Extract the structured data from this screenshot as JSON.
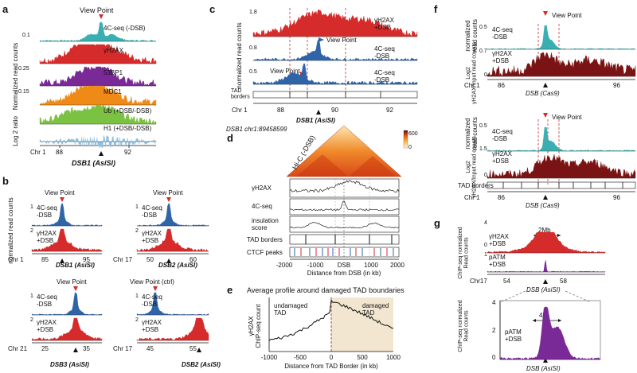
{
  "panels": {
    "a": {
      "letter": "a",
      "view_point": "View Point",
      "y_label": "Normalized read counts",
      "y_label2": "Log 2 ratio",
      "tracks": [
        {
          "label": "4C-seq (-DSB)",
          "color": "#3aaeb0"
        },
        {
          "label": "γH2AX",
          "color": "#d62b2b"
        },
        {
          "label": "53BP1",
          "color": "#7a2a96"
        },
        {
          "label": "MDC1",
          "color": "#ef8a17"
        },
        {
          "label": "Ub (+DSB/-DSB)",
          "color": "#7cc242"
        },
        {
          "label": "H1 (+DSB/-DSB)",
          "color": "#8fbfe0"
        }
      ],
      "track_max": [
        "0.1",
        "0.25",
        "0.15"
      ],
      "chr": "Chr 1",
      "x_ticks": [
        "88",
        "92"
      ],
      "dsb_label": "DSB1 (AsiSI)"
    },
    "b": {
      "letter": "b",
      "y_label": "normalized read counts",
      "view_point": "View Point",
      "view_point_ctrl": "View Point (ctrl)",
      "track1_label": "4C-seq\n-DSB",
      "track2_label": "γH2AX\n+DSB",
      "subs": [
        {
          "chr": "Chr 1",
          "ticks": [
            "85",
            "95"
          ],
          "dsb": "DSB1 (AsiSI)",
          "t1max": "1",
          "t2max": "2"
        },
        {
          "chr": "Chr 17",
          "ticks": [
            "50",
            "60"
          ],
          "dsb": "DSB2 (AsiSI)",
          "t1max": "1",
          "t2max": "2"
        },
        {
          "chr": "Chr 21",
          "ticks": [
            "25",
            "35"
          ],
          "dsb": "DSB3 (AsiSI)",
          "t1max": "1",
          "t2max": "2"
        },
        {
          "chr": "Chr 17",
          "ticks": [
            "45",
            "55"
          ],
          "dsb": "DSB2 (AsiSI)",
          "t1max": "1",
          "t2max": "2"
        }
      ]
    },
    "c": {
      "letter": "c",
      "y_label": "normalized read counts",
      "track1": "γH2AX\n+DSB",
      "track2": "4C-seq\n-DSB",
      "track3": "4C-seq\n-DSB",
      "view_point": "View Point",
      "tad": "TAD\nborders",
      "chr": "Chr 1",
      "ticks": [
        "88",
        "90",
        "92"
      ],
      "dsb": "DSB1 (AsiSI)",
      "maxes": [
        "1.8",
        "0.8",
        "0.5"
      ]
    },
    "d": {
      "letter": "d",
      "title": "DSB1 chr1:89458599",
      "hic": "Hi-C (-DSB)",
      "legend_max": "600",
      "legend_min": "0",
      "rows": [
        "γH2AX",
        "4C-seq",
        "insulation\nscore",
        "TAD borders",
        "CTCF peaks"
      ],
      "x_ticks": [
        "-2000",
        "-1000",
        "DSB",
        "1000",
        "2000"
      ],
      "x_label": "Distance from DSB (in kb)"
    },
    "e": {
      "letter": "e",
      "title": "Average profile around damaged TAD boundaries",
      "y_label": "γH2AX\nChIP-seq count",
      "left_region": "undamaged\nTAD",
      "right_region": "damaged\nTAD",
      "x_ticks": [
        "-1000",
        "-500",
        "0",
        "500",
        "1000"
      ],
      "x_label": "Distance from TAD Border (in kb)"
    },
    "f": {
      "letter": "f",
      "y_label_top": "normalized\nread counts",
      "y_label_bot": "Log2\nγH2AX/Input read counts",
      "view_point": "View Point",
      "track1": "4C-seq\n-DSB",
      "track2": "γH2AX\n+DSB",
      "maxes_top": [
        "0.5",
        "0.7",
        "0"
      ],
      "maxes_bot": [
        "0.5",
        "1.5",
        "0"
      ],
      "chr": "Chr 1",
      "ticks": [
        "86",
        "96"
      ],
      "dsb": "DSB (Cas9)",
      "tad": "TAD borders"
    },
    "g": {
      "letter": "g",
      "y_label_top": "ChIP-seq normalized\nRead counts",
      "y_label_bot": "ChIP-seq normalized\nRead counts",
      "track1": "γH2AX\n+DSB",
      "track2": "pATM\n+DSB",
      "track3": "pATM\n+DSB",
      "scale_top": "2Mb",
      "scale_bot": "4kb",
      "chr": "Chr17",
      "ticks": [
        "54",
        "58"
      ],
      "dsb": "DSB (AsiSI)",
      "maxes_top": [
        "4",
        "0",
        "1"
      ],
      "y_ticks_bot": [
        "4",
        "2",
        "0"
      ]
    }
  },
  "colors": {
    "teal": "#3aaeb0",
    "red": "#d62b2b",
    "darkred": "#7a1414",
    "blue": "#2f64a8",
    "purple": "#7a2a96",
    "beige": "#f3e6d0"
  }
}
